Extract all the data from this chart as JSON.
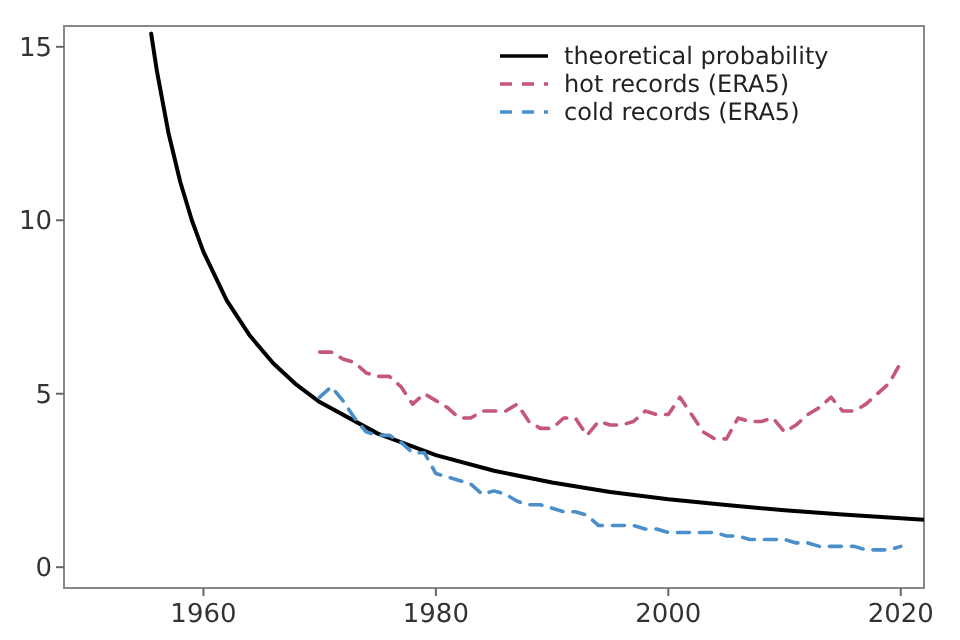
{
  "chart_data": {
    "type": "line",
    "xlim": [
      1948,
      2022
    ],
    "ylim": [
      -0.6,
      15.6
    ],
    "xticks": [
      1960,
      1980,
      2000,
      2020
    ],
    "yticks": [
      0,
      5,
      10,
      15
    ],
    "grid": false,
    "legend": "top right",
    "marker": "none",
    "series": [
      {
        "name": "theoretical probability",
        "color": "#000000",
        "line_style": "solid",
        "x": [
          1955.5,
          1956,
          1957,
          1958,
          1959,
          1960,
          1962,
          1964,
          1966,
          1968,
          1970,
          1975,
          1980,
          1985,
          1990,
          1995,
          2000,
          2005,
          2010,
          2015,
          2020,
          2022
        ],
        "values": [
          15.38,
          14.29,
          12.5,
          11.11,
          10,
          9.09,
          7.69,
          6.67,
          5.88,
          5.26,
          4.76,
          3.85,
          3.23,
          2.78,
          2.44,
          2.17,
          1.96,
          1.79,
          1.64,
          1.52,
          1.41,
          1.37
        ]
      },
      {
        "name": "hot records (ERA5)",
        "color": "#c4577a",
        "line_style": "dashed",
        "x": [
          1970,
          1971,
          1972,
          1973,
          1974,
          1975,
          1976,
          1977,
          1978,
          1979,
          1980,
          1981,
          1982,
          1983,
          1984,
          1985,
          1986,
          1987,
          1988,
          1989,
          1990,
          1991,
          1992,
          1993,
          1994,
          1995,
          1996,
          1997,
          1998,
          1999,
          2000,
          2001,
          2002,
          2003,
          2004,
          2005,
          2006,
          2007,
          2008,
          2009,
          2010,
          2011,
          2012,
          2013,
          2014,
          2015,
          2016,
          2017,
          2018,
          2019,
          2020
        ],
        "values": [
          6.2,
          6.2,
          6.0,
          5.9,
          5.6,
          5.5,
          5.5,
          5.2,
          4.7,
          5.0,
          4.8,
          4.6,
          4.3,
          4.3,
          4.5,
          4.5,
          4.5,
          4.7,
          4.2,
          4.0,
          4.0,
          4.3,
          4.3,
          3.8,
          4.2,
          4.1,
          4.1,
          4.2,
          4.5,
          4.4,
          4.4,
          4.9,
          4.4,
          3.9,
          3.7,
          3.7,
          4.3,
          4.2,
          4.2,
          4.3,
          3.9,
          4.1,
          4.4,
          4.6,
          4.9,
          4.5,
          4.5,
          4.7,
          5.0,
          5.3,
          5.9
        ]
      },
      {
        "name": "cold records (ERA5)",
        "color": "#4a8fc9",
        "line_style": "dashed",
        "x": [
          1970,
          1971,
          1972,
          1973,
          1974,
          1975,
          1976,
          1977,
          1978,
          1979,
          1980,
          1981,
          1982,
          1983,
          1984,
          1985,
          1986,
          1987,
          1988,
          1989,
          1990,
          1991,
          1992,
          1993,
          1994,
          1995,
          1996,
          1997,
          1998,
          1999,
          2000,
          2001,
          2002,
          2003,
          2004,
          2005,
          2006,
          2007,
          2008,
          2009,
          2010,
          2011,
          2012,
          2013,
          2014,
          2015,
          2016,
          2017,
          2018,
          2019,
          2020
        ],
        "values": [
          4.9,
          5.2,
          4.8,
          4.3,
          3.9,
          3.8,
          3.8,
          3.6,
          3.3,
          3.3,
          2.7,
          2.6,
          2.5,
          2.4,
          2.1,
          2.2,
          2.1,
          1.9,
          1.8,
          1.8,
          1.7,
          1.6,
          1.6,
          1.5,
          1.2,
          1.2,
          1.2,
          1.2,
          1.1,
          1.1,
          1.0,
          1.0,
          1.0,
          1.0,
          1.0,
          0.9,
          0.9,
          0.8,
          0.8,
          0.8,
          0.8,
          0.7,
          0.7,
          0.6,
          0.6,
          0.6,
          0.6,
          0.5,
          0.5,
          0.5,
          0.6
        ]
      }
    ]
  }
}
